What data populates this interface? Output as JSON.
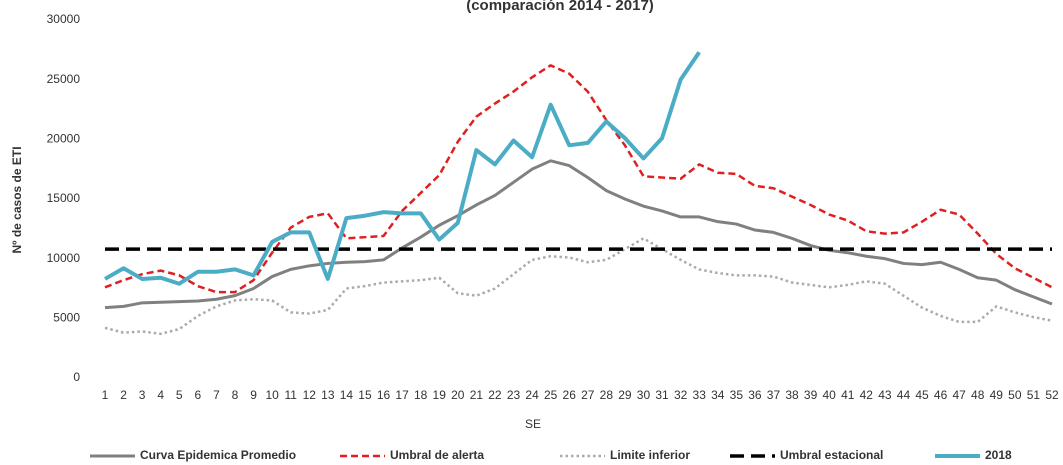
{
  "chart_data": {
    "type": "line",
    "title": "(comparación 2014 - 2017)",
    "x_label": "SE",
    "y_label": "Nº de casos de ETI",
    "categories": [
      1,
      2,
      3,
      4,
      5,
      6,
      7,
      8,
      9,
      10,
      11,
      12,
      13,
      14,
      15,
      16,
      17,
      18,
      19,
      20,
      21,
      22,
      23,
      24,
      25,
      26,
      27,
      28,
      29,
      30,
      31,
      32,
      33,
      34,
      35,
      36,
      37,
      38,
      39,
      40,
      41,
      42,
      43,
      44,
      45,
      46,
      47,
      48,
      49,
      50,
      51,
      52
    ],
    "ylim": [
      0,
      30000
    ],
    "yticks": [
      0,
      5000,
      10000,
      15000,
      20000,
      25000,
      30000
    ],
    "grid": false,
    "legend": "bottom",
    "series": [
      {
        "name": "Curva Epidemica Promedio",
        "color": "#808080",
        "dash": "solid",
        "width": 3,
        "values": [
          5900,
          6000,
          6300,
          6350,
          6400,
          6450,
          6600,
          6900,
          7500,
          8500,
          9100,
          9400,
          9600,
          9700,
          9750,
          9900,
          10900,
          11800,
          12800,
          13600,
          14500,
          15300,
          16400,
          17500,
          18200,
          17800,
          16800,
          15700,
          15000,
          14400,
          14000,
          13500,
          13500,
          13100,
          12900,
          12400,
          12200,
          11700,
          11100,
          10700,
          10500,
          10200,
          10000,
          9600,
          9500,
          9700,
          9100,
          8400,
          8200,
          7400,
          6800,
          6200
        ]
      },
      {
        "name": "Umbral de alerta",
        "color": "#e02020",
        "dash": "dashed",
        "width": 2.5,
        "values": [
          7600,
          8200,
          8700,
          9000,
          8600,
          7700,
          7200,
          7200,
          8200,
          10500,
          12600,
          13500,
          13800,
          11700,
          11800,
          11900,
          14000,
          15500,
          17000,
          19800,
          21900,
          23000,
          24000,
          25200,
          26200,
          25500,
          24000,
          21600,
          19500,
          16900,
          16800,
          16700,
          17900,
          17200,
          17100,
          16100,
          15900,
          15200,
          14500,
          13700,
          13200,
          12300,
          12100,
          12200,
          13100,
          14100,
          13700,
          12100,
          10400,
          9200,
          8400,
          7600
        ]
      },
      {
        "name": "Limite inferior",
        "color": "#aaaaaa",
        "dash": "dotted",
        "width": 2.5,
        "values": [
          4200,
          3800,
          3900,
          3700,
          4100,
          5200,
          6000,
          6500,
          6600,
          6500,
          5500,
          5400,
          5700,
          7500,
          7700,
          8000,
          8100,
          8200,
          8400,
          7100,
          6900,
          7500,
          8700,
          9900,
          10200,
          10100,
          9700,
          9900,
          10800,
          11700,
          10800,
          9900,
          9100,
          8800,
          8600,
          8600,
          8500,
          8000,
          7800,
          7600,
          7800,
          8100,
          7900,
          6900,
          5900,
          5200,
          4700,
          4700,
          6000,
          5500,
          5100,
          4800
        ]
      },
      {
        "name": "Umbral estacional",
        "color": "#000000",
        "dash": "longdash",
        "width": 3.5,
        "values": [
          10800,
          10800,
          10800,
          10800,
          10800,
          10800,
          10800,
          10800,
          10800,
          10800,
          10800,
          10800,
          10800,
          10800,
          10800,
          10800,
          10800,
          10800,
          10800,
          10800,
          10800,
          10800,
          10800,
          10800,
          10800,
          10800,
          10800,
          10800,
          10800,
          10800,
          10800,
          10800,
          10800,
          10800,
          10800,
          10800,
          10800,
          10800,
          10800,
          10800,
          10800,
          10800,
          10800,
          10800,
          10800,
          10800,
          10800,
          10800,
          10800,
          10800,
          10800,
          10800
        ]
      },
      {
        "name": "2018",
        "color": "#4bacc6",
        "dash": "solid",
        "width": 4,
        "values": [
          8300,
          9200,
          8300,
          8400,
          7900,
          8900,
          8900,
          9100,
          8600,
          11400,
          12200,
          12200,
          8300,
          13400,
          13600,
          13900,
          13800,
          13800,
          11600,
          13000,
          19100,
          17900,
          19900,
          18500,
          22900,
          19500,
          19700,
          21500,
          20100,
          18400,
          20100,
          25000,
          27300,
          null,
          null,
          null,
          null,
          null,
          null,
          null,
          null,
          null,
          null,
          null,
          null,
          null,
          null,
          null,
          null,
          null,
          null,
          null
        ]
      }
    ]
  }
}
